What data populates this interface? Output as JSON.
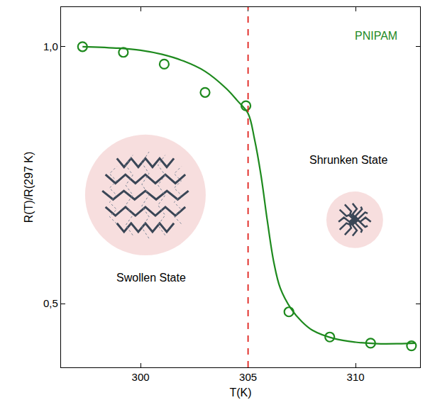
{
  "chart_data": {
    "type": "scatter",
    "x_label": "T(K)",
    "y_label": "R(T)/R(297 K)",
    "xlim": [
      296.3,
      313.0
    ],
    "ylim": [
      0.376,
      1.077
    ],
    "xticks": [
      300,
      305,
      310
    ],
    "yticks": [
      {
        "value": 0.5,
        "label": "0,5"
      },
      {
        "value": 1.0,
        "label": "1,0"
      }
    ],
    "grid": false,
    "series": [
      {
        "type": "scatter",
        "marker": "open_circle",
        "color": "#1e8a1e",
        "x": [
          297.3,
          299.2,
          301.1,
          303.0,
          304.9,
          306.9,
          308.8,
          310.7,
          312.6
        ],
        "values": [
          1.0,
          0.989,
          0.966,
          0.911,
          0.885,
          0.484,
          0.435,
          0.423,
          0.418
        ]
      },
      {
        "type": "line",
        "line_style": "solid",
        "color": "#1e8a1e",
        "x": [
          297.3,
          299.0,
          300.0,
          301.0,
          302.0,
          303.0,
          304.0,
          304.5,
          305.0,
          305.3,
          305.6,
          305.9,
          306.2,
          306.5,
          307.0,
          307.5,
          308.0,
          309.0,
          310.0,
          311.0,
          312.0,
          312.8
        ],
        "values": [
          1.0,
          0.997,
          0.993,
          0.985,
          0.972,
          0.952,
          0.918,
          0.895,
          0.87,
          0.82,
          0.75,
          0.66,
          0.58,
          0.53,
          0.49,
          0.465,
          0.448,
          0.432,
          0.425,
          0.422,
          0.422,
          0.423
        ]
      }
    ],
    "vline": {
      "x": 305,
      "color": "#e0201b",
      "line_style": "dashed"
    },
    "annotations": [
      {
        "text": "PNIPAM",
        "color": "#1e8a1e"
      },
      {
        "text": "Shrunken State",
        "color": "#000000"
      },
      {
        "text": "Swollen State",
        "color": "#000000"
      }
    ]
  }
}
